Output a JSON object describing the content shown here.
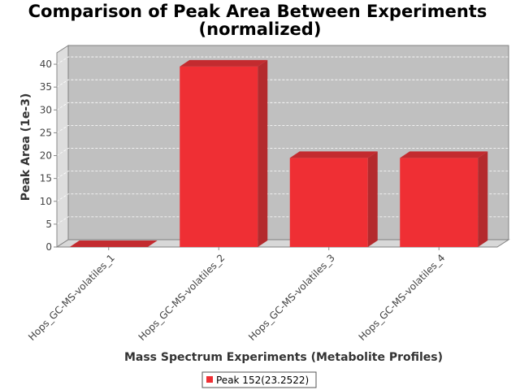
{
  "chart_data": {
    "type": "bar",
    "title": "Comparison of Peak Area Between Experiments",
    "subtitle": "(normalized)",
    "xlabel": "Mass Spectrum Experiments (Metabolite Profiles)",
    "ylabel": "Peak Area (1e-3)",
    "categories": [
      "Hops_GC-MS-volatiles_1",
      "Hops_GC-MS-volatiles_2",
      "Hops_GC-MS-volatiles_3",
      "Hops_GC-MS-volatiles_4"
    ],
    "series": [
      {
        "name": "Peak 152(23.2522)",
        "values": [
          0,
          39.5,
          19.5,
          19.5
        ]
      }
    ],
    "yticks": [
      "0",
      "5",
      "10",
      "15",
      "20",
      "25",
      "30",
      "35",
      "40"
    ],
    "ylim": [
      0,
      42.5
    ],
    "grid": true,
    "legend": "bottom-center",
    "colors": {
      "bar_front": "#ef2f34",
      "bar_side": "#b42a2d",
      "bar_top": "#c32b2f",
      "plot_back": "#c0c0c0",
      "plot_floor": "#d8d8d8",
      "plot_wall": "#dedede"
    }
  }
}
